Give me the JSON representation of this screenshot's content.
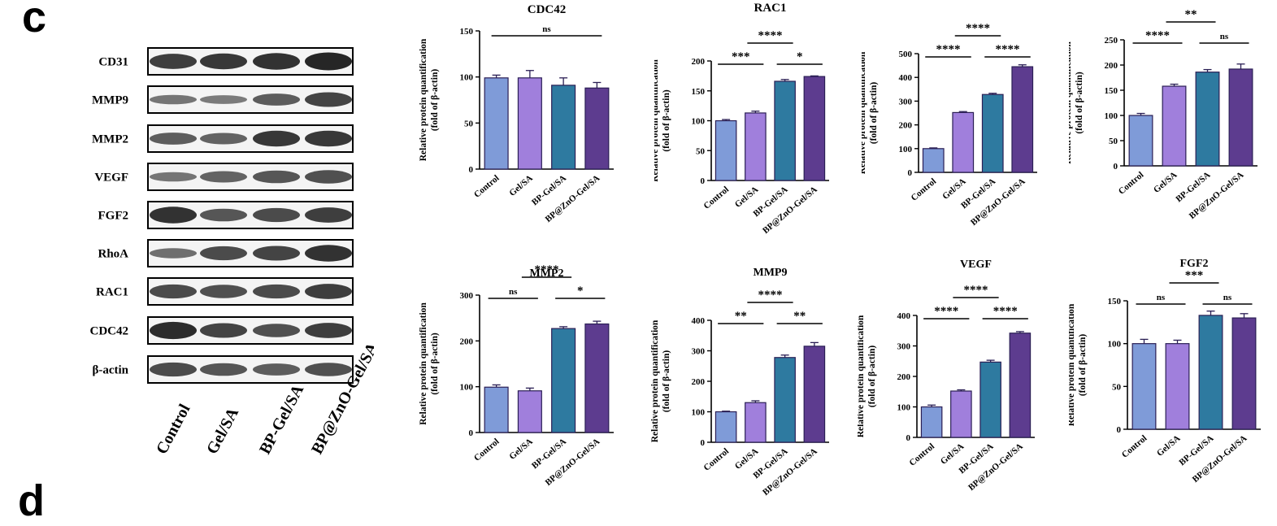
{
  "figure": {
    "panel_c": "c",
    "panel_d": "d"
  },
  "western_blot": {
    "proteins": [
      "CD31",
      "MMP9",
      "MMP2",
      "VEGF",
      "FGF2",
      "RhoA",
      "RAC1",
      "CDC42",
      "β-actin"
    ],
    "lanes": [
      "Control",
      "Gel/SA",
      "BP-Gel/SA",
      "BP@ZnO-Gel/SA"
    ],
    "band_intensity": [
      [
        0.8,
        0.85,
        0.9,
        1.0
      ],
      [
        0.35,
        0.3,
        0.55,
        0.75
      ],
      [
        0.55,
        0.5,
        0.85,
        0.85
      ],
      [
        0.35,
        0.5,
        0.6,
        0.65
      ],
      [
        0.9,
        0.6,
        0.7,
        0.8
      ],
      [
        0.4,
        0.7,
        0.75,
        0.9
      ],
      [
        0.7,
        0.65,
        0.7,
        0.8
      ],
      [
        0.95,
        0.75,
        0.65,
        0.8
      ],
      [
        0.7,
        0.6,
        0.55,
        0.65
      ]
    ]
  },
  "colors": [
    "#7f9bd8",
    "#a07fdc",
    "#2e7aa0",
    "#5d3c8f"
  ],
  "chart_data": [
    {
      "type": "bar",
      "title": "CDC42",
      "categories": [
        "Control",
        "Gel/SA",
        "BP-Gel/SA",
        "BP@ZnO-Gel/SA"
      ],
      "values": [
        99,
        99,
        91,
        88
      ],
      "errors": [
        3,
        8,
        8,
        6
      ],
      "ylabel": "Relative protein quantification",
      "ylabel2": "(fold of β-actin)",
      "ylim": [
        0,
        150
      ],
      "yticks": [
        0,
        50,
        100,
        150
      ],
      "significance": [
        {
          "from": 0,
          "to": 3,
          "label": "ns"
        }
      ]
    },
    {
      "type": "bar",
      "title": "RAC1",
      "categories": [
        "Control",
        "Gel/SA",
        "BP-Gel/SA",
        "BP@ZnO-Gel/SA"
      ],
      "values": [
        100,
        113,
        166,
        174
      ],
      "errors": [
        2,
        3,
        3,
        1
      ],
      "ylabel": "Relative protein quantification",
      "ylabel2": "(fold of β-actin)",
      "ylim": [
        0,
        200
      ],
      "yticks": [
        0,
        50,
        100,
        150,
        200
      ],
      "significance": [
        {
          "from": 0,
          "to": 1,
          "label": "***"
        },
        {
          "from": 1,
          "to": 2,
          "label": "****"
        },
        {
          "from": 2,
          "to": 3,
          "label": "*"
        }
      ]
    },
    {
      "type": "bar",
      "title": "",
      "categories": [
        "Control",
        "Gel/SA",
        "BP-Gel/SA",
        "BP@ZnO-Gel/SA"
      ],
      "values": [
        100,
        252,
        328,
        445
      ],
      "errors": [
        3,
        4,
        5,
        8
      ],
      "ylabel": "Relative protein quantification",
      "ylabel2": "(fold of β-actin)",
      "ylim": [
        0,
        500
      ],
      "yticks": [
        0,
        100,
        200,
        300,
        400,
        500
      ],
      "significance": [
        {
          "from": 0,
          "to": 1,
          "label": "****"
        },
        {
          "from": 1,
          "to": 2,
          "label": "****"
        },
        {
          "from": 2,
          "to": 3,
          "label": "****"
        }
      ]
    },
    {
      "type": "bar",
      "title": "",
      "categories": [
        "Control",
        "Gel/SA",
        "BP-Gel/SA",
        "BP@ZnO-Gel/SA"
      ],
      "values": [
        100,
        158,
        186,
        192
      ],
      "errors": [
        4,
        4,
        5,
        10
      ],
      "ylabel": "Relative protein quantification",
      "ylabel2": "(fold of β-actin)",
      "ylim": [
        0,
        250
      ],
      "yticks": [
        0,
        50,
        100,
        150,
        200,
        250
      ],
      "significance": [
        {
          "from": 0,
          "to": 1,
          "label": "****"
        },
        {
          "from": 1,
          "to": 2,
          "label": "**"
        },
        {
          "from": 2,
          "to": 3,
          "label": "ns"
        }
      ]
    },
    {
      "type": "bar",
      "title": "MMP2",
      "categories": [
        "Control",
        "Gel/SA",
        "BP-Gel/SA",
        "BP@ZnO-Gel/SA"
      ],
      "values": [
        99,
        91,
        227,
        237
      ],
      "errors": [
        5,
        6,
        4,
        6
      ],
      "ylabel": "Relative protein quantification",
      "ylabel2": "(fold of β-actin)",
      "ylim": [
        0,
        300
      ],
      "yticks": [
        0,
        100,
        200,
        300
      ],
      "significance": [
        {
          "from": 0,
          "to": 1,
          "label": "ns"
        },
        {
          "from": 1,
          "to": 2,
          "label": "****"
        },
        {
          "from": 2,
          "to": 3,
          "label": "*"
        }
      ]
    },
    {
      "type": "bar",
      "title": "MMP9",
      "categories": [
        "Control",
        "Gel/SA",
        "BP-Gel/SA",
        "BP@ZnO-Gel/SA"
      ],
      "values": [
        100,
        130,
        278,
        315
      ],
      "errors": [
        2,
        6,
        8,
        12
      ],
      "ylabel": "Relative protein quantification",
      "ylabel2": "(fold of β-actin)",
      "ylim": [
        0,
        400
      ],
      "yticks": [
        0,
        100,
        200,
        300,
        400
      ],
      "significance": [
        {
          "from": 0,
          "to": 1,
          "label": "**"
        },
        {
          "from": 1,
          "to": 2,
          "label": "****"
        },
        {
          "from": 2,
          "to": 3,
          "label": "**"
        }
      ]
    },
    {
      "type": "bar",
      "title": "VEGF",
      "categories": [
        "Control",
        "Gel/SA",
        "BP-Gel/SA",
        "BP@ZnO-Gel/SA"
      ],
      "values": [
        100,
        152,
        247,
        342
      ],
      "errors": [
        6,
        4,
        6,
        5
      ],
      "ylabel": "Relative protein quantification",
      "ylabel2": "(fold of β-actin)",
      "ylim": [
        0,
        400
      ],
      "yticks": [
        0,
        100,
        200,
        300,
        400
      ],
      "significance": [
        {
          "from": 0,
          "to": 1,
          "label": "****"
        },
        {
          "from": 1,
          "to": 2,
          "label": "****"
        },
        {
          "from": 2,
          "to": 3,
          "label": "****"
        }
      ]
    },
    {
      "type": "bar",
      "title": "FGF2",
      "categories": [
        "Control",
        "Gel/SA",
        "BP-Gel/SA",
        "BP@ZnO-Gel/SA"
      ],
      "values": [
        100,
        100,
        133,
        130
      ],
      "errors": [
        5,
        4,
        5,
        5
      ],
      "ylabel": "Relative protein quantification",
      "ylabel2": "(fold of β-actin)",
      "ylim": [
        0,
        150
      ],
      "yticks": [
        0,
        50,
        100,
        150
      ],
      "significance": [
        {
          "from": 0,
          "to": 1,
          "label": "ns"
        },
        {
          "from": 1,
          "to": 2,
          "label": "***"
        },
        {
          "from": 2,
          "to": 3,
          "label": "ns"
        }
      ]
    }
  ]
}
